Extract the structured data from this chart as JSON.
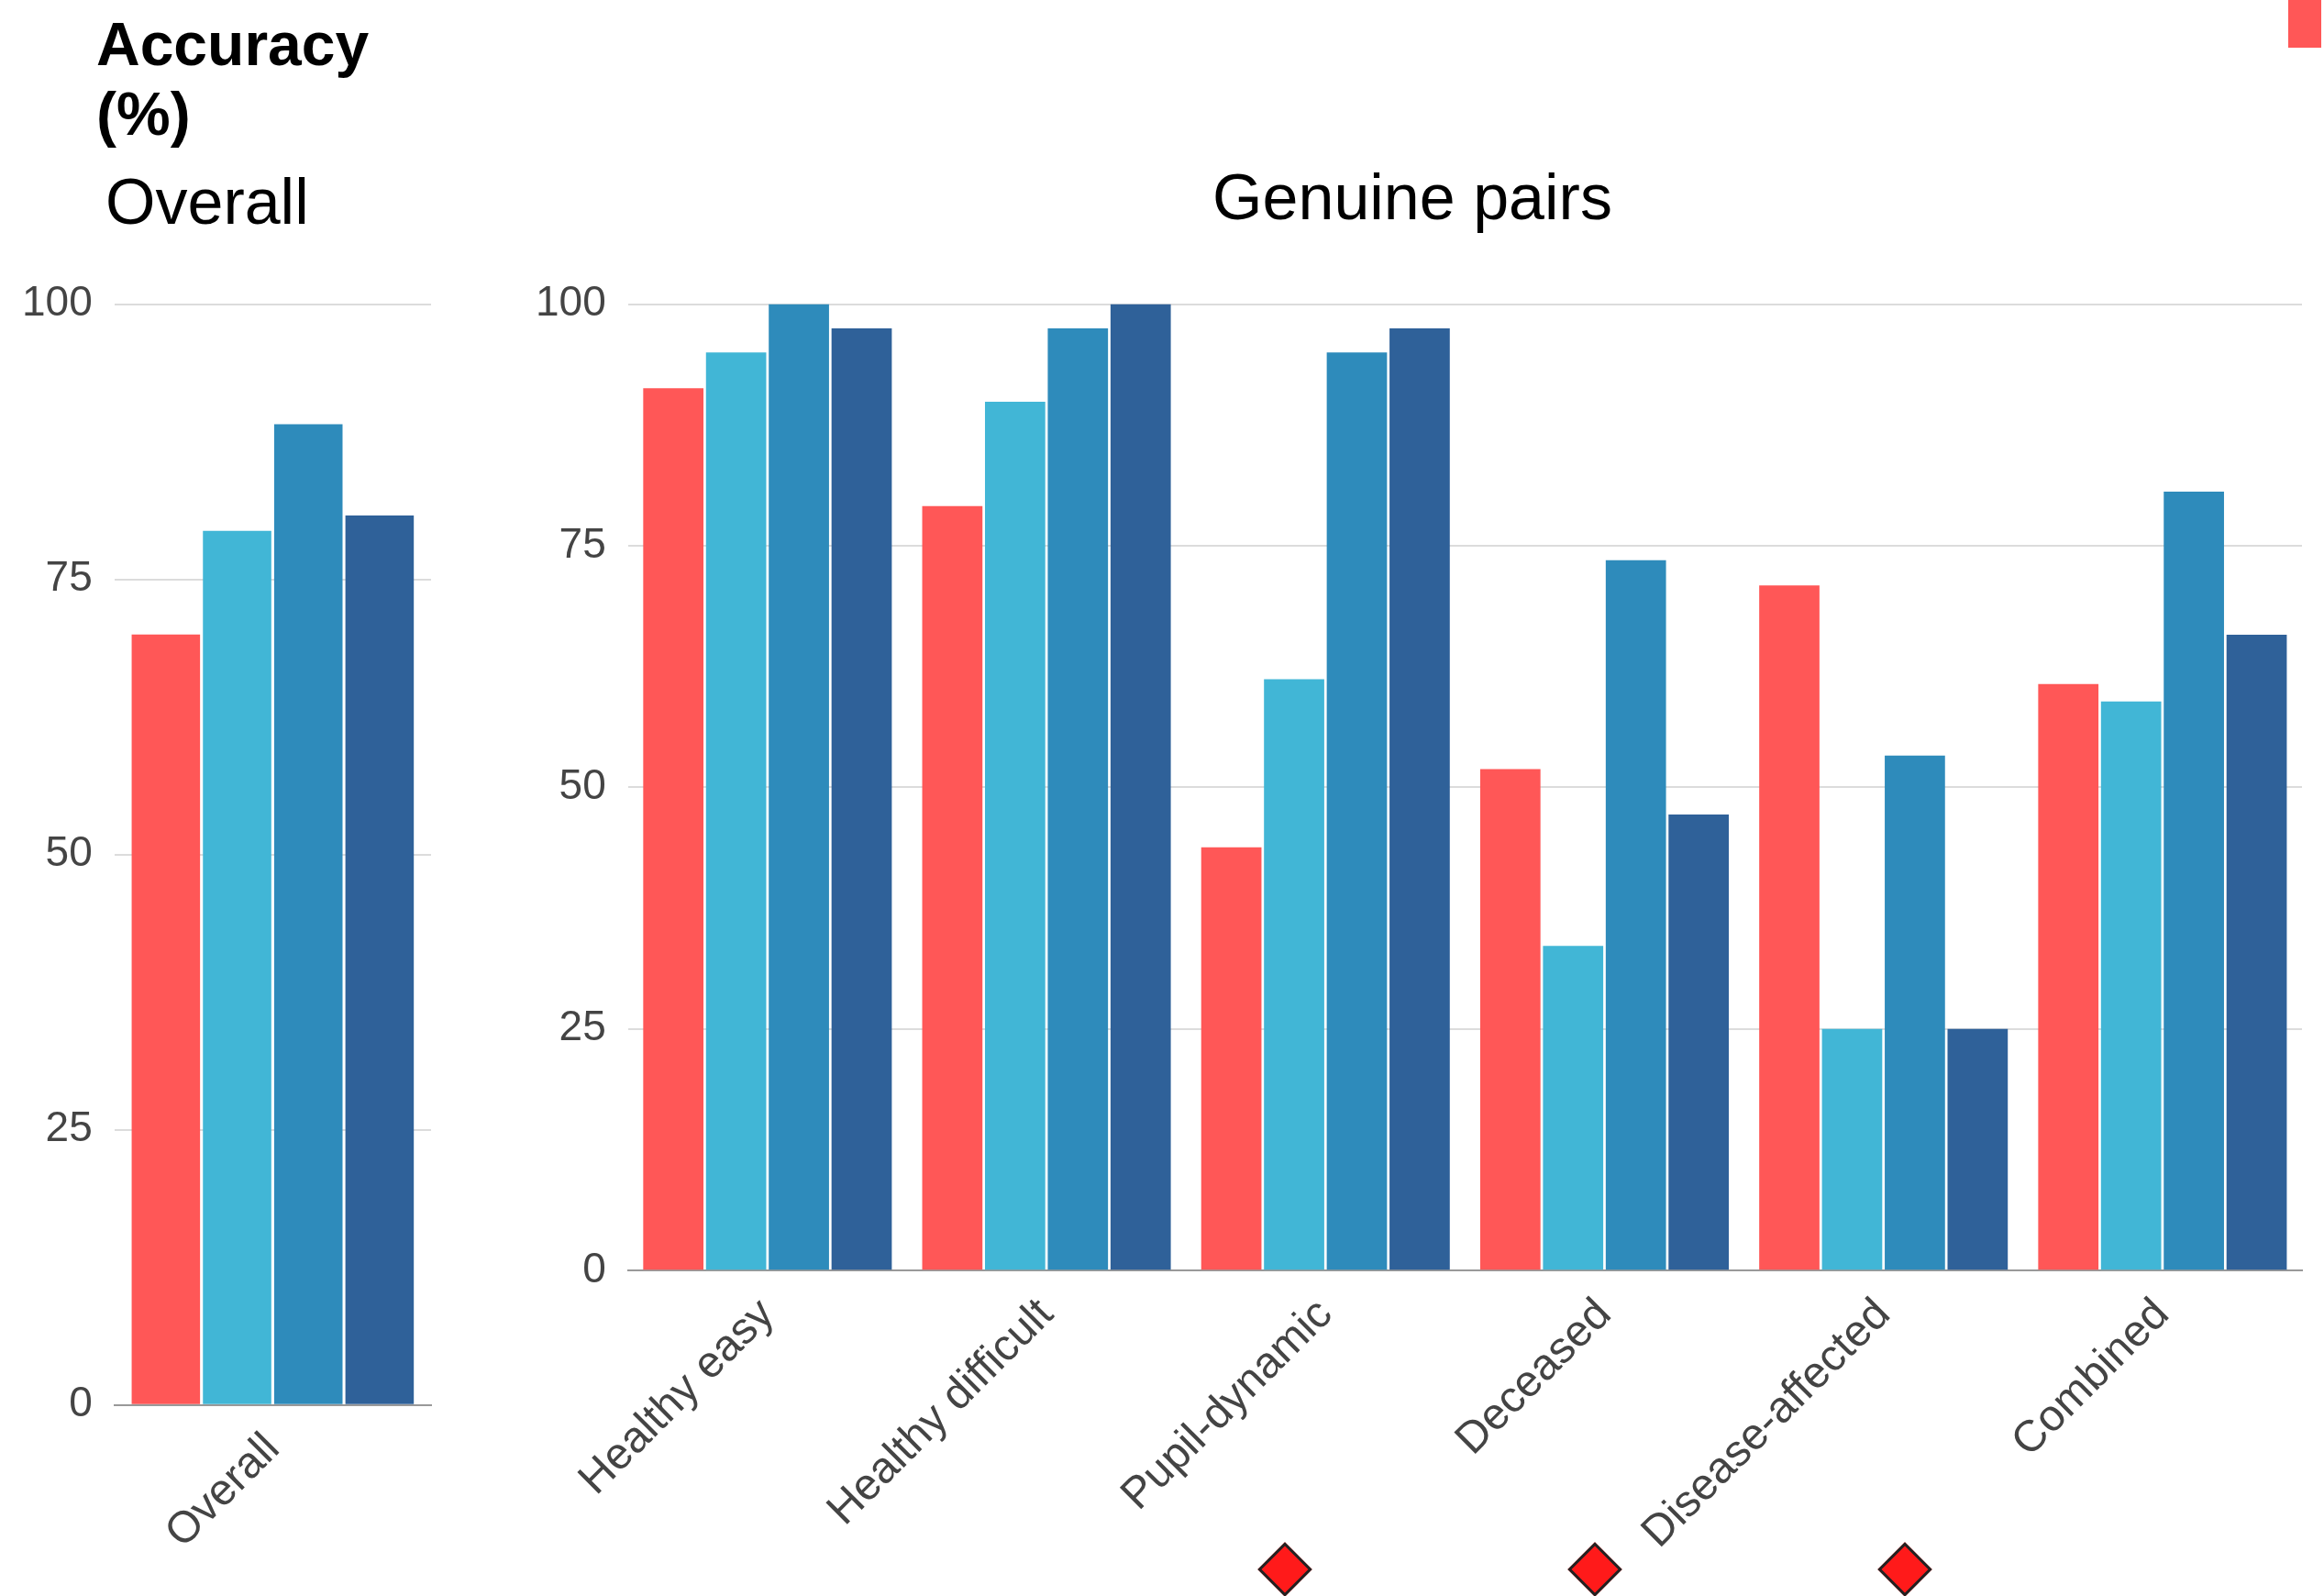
{
  "chart_data": [
    {
      "type": "bar",
      "title": "Accuracy (%)",
      "subtitle": "Overall",
      "categories": [
        "Overall"
      ],
      "series": [
        {
          "color": "#ff5757",
          "values": [
            70
          ]
        },
        {
          "color": "#41b6d6",
          "values": [
            79.4
          ]
        },
        {
          "color": "#2e8bbb",
          "values": [
            89.1
          ]
        },
        {
          "color": "#2f6199",
          "values": [
            80.8
          ]
        }
      ],
      "ylim": [
        0,
        100
      ],
      "yticks": [
        0,
        25,
        50,
        75,
        100
      ],
      "grid": "y"
    },
    {
      "type": "bar",
      "title": "Genuine pairs",
      "categories": [
        "Healthy easy",
        "Healthy difficult",
        "Pupil-dynamic",
        "Deceased",
        "Disease-affected",
        "Combined"
      ],
      "series": [
        {
          "color": "#ff5757",
          "values": [
            91.3,
            79.1,
            43.8,
            51.9,
            70.9,
            60.7
          ]
        },
        {
          "color": "#41b6d6",
          "values": [
            95,
            89.9,
            61.2,
            33.6,
            25,
            58.9
          ]
        },
        {
          "color": "#2e8bbb",
          "values": [
            100,
            97.5,
            95,
            73.5,
            53.3,
            80.6
          ]
        },
        {
          "color": "#2f6199",
          "values": [
            97.5,
            100,
            97.5,
            47.2,
            25,
            65.8
          ]
        }
      ],
      "ylim": [
        0,
        100
      ],
      "yticks": [
        0,
        25,
        50,
        75,
        100
      ],
      "grid": "y"
    }
  ]
}
